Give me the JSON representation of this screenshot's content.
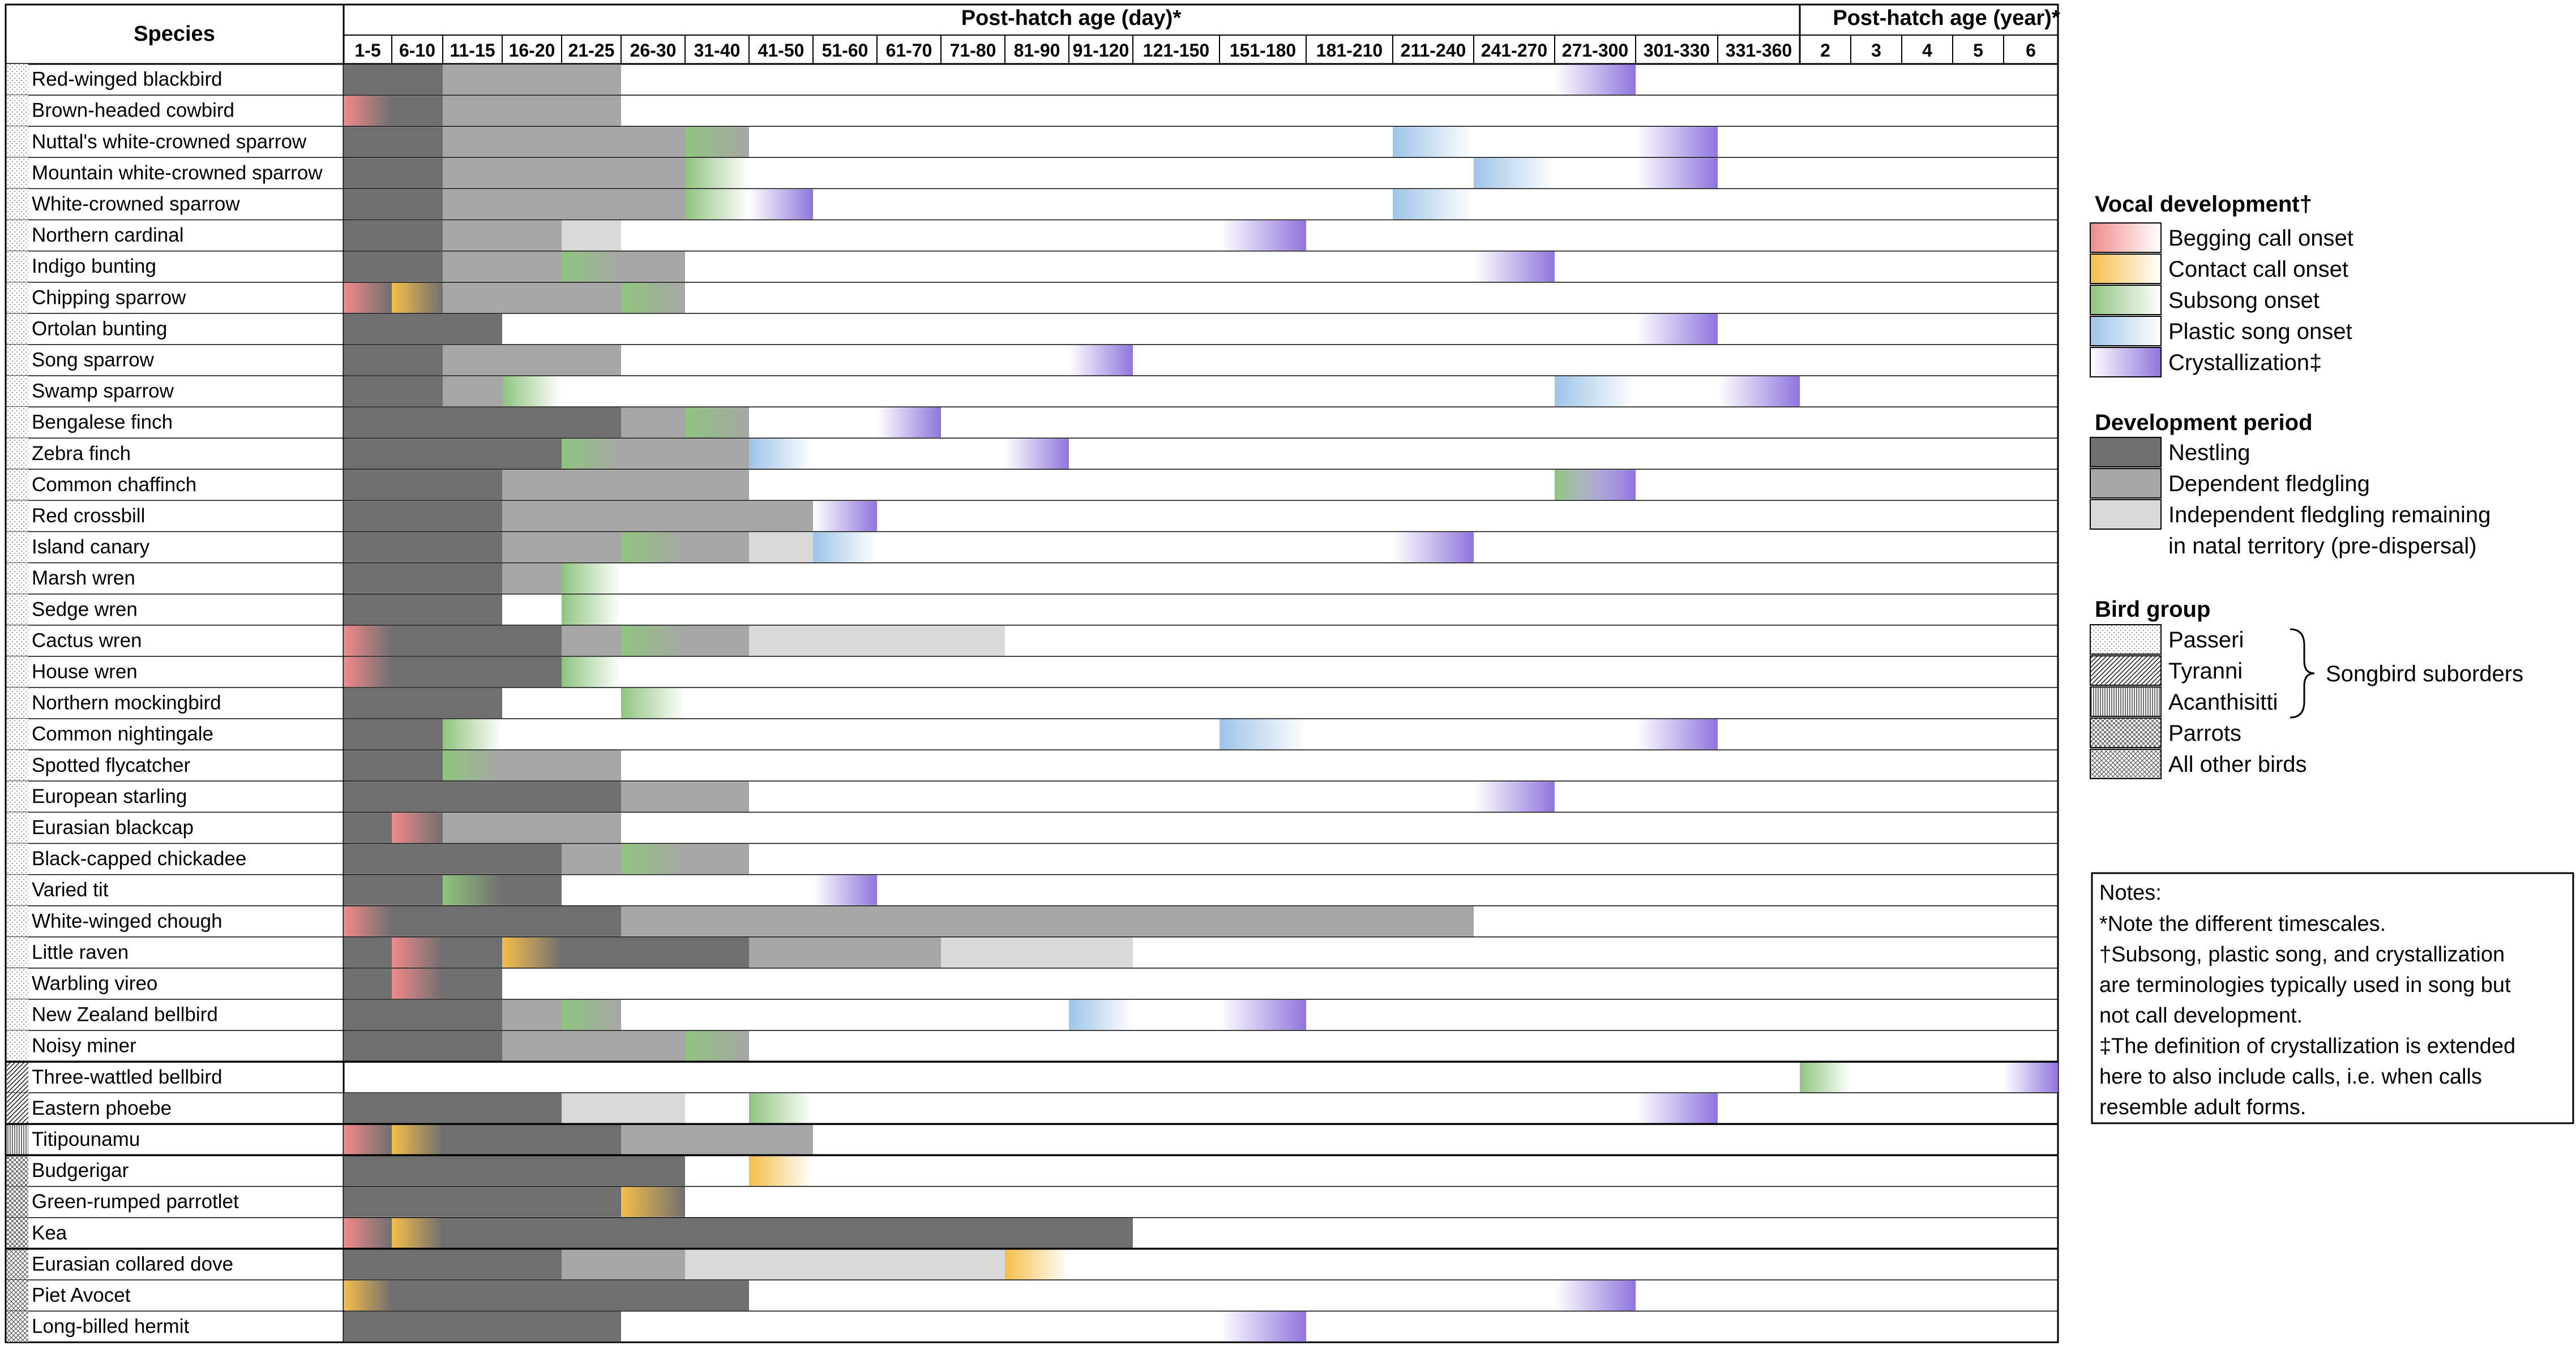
{
  "header": {
    "species": "Species",
    "day_group": "Post-hatch age (day)*",
    "year_group": "Post-hatch age (year)*"
  },
  "columns": [
    "1-5",
    "6-10",
    "11-15",
    "16-20",
    "21-25",
    "26-30",
    "31-40",
    "41-50",
    "51-60",
    "61-70",
    "71-80",
    "81-90",
    "91-120",
    "121-150",
    "151-180",
    "181-210",
    "211-240",
    "241-270",
    "271-300",
    "301-330",
    "331-360",
    "2",
    "3",
    "4",
    "5",
    "6"
  ],
  "colors": {
    "nestling": "#706f6f",
    "dependent": "#a6a6a6",
    "independent": "#d9d9d9",
    "begging": "#f08a8a",
    "contact": "#f5be4a",
    "subsong": "#8fc47e",
    "plastic": "#9ec4e8",
    "crystal": "#8f75dd"
  },
  "species": [
    {
      "name": "Red-winged blackbird",
      "group": "passeri",
      "segs": [
        [
          "n",
          0,
          2
        ],
        [
          "d",
          2,
          5
        ]
      ],
      "marks": [
        [
          "x",
          18
        ]
      ]
    },
    {
      "name": "Brown-headed cowbird",
      "group": "passeri",
      "segs": [
        [
          "n",
          0,
          2
        ],
        [
          "d",
          2,
          5
        ]
      ],
      "marks": [
        [
          "b",
          0
        ]
      ]
    },
    {
      "name": "Nuttal's white-crowned sparrow",
      "group": "passeri",
      "segs": [
        [
          "n",
          0,
          2
        ],
        [
          "d",
          2,
          7
        ]
      ],
      "marks": [
        [
          "s",
          6
        ],
        [
          "p",
          16
        ],
        [
          "x",
          19
        ]
      ]
    },
    {
      "name": "Mountain white-crowned sparrow",
      "group": "passeri",
      "segs": [
        [
          "n",
          0,
          2
        ],
        [
          "d",
          2,
          6
        ]
      ],
      "marks": [
        [
          "s",
          6
        ],
        [
          "p",
          17
        ],
        [
          "x",
          19
        ]
      ]
    },
    {
      "name": "White-crowned sparrow",
      "group": "passeri",
      "segs": [
        [
          "n",
          0,
          2
        ],
        [
          "d",
          2,
          6
        ]
      ],
      "marks": [
        [
          "s",
          6
        ],
        [
          "x",
          7
        ],
        [
          "p",
          16
        ]
      ]
    },
    {
      "name": "Northern cardinal",
      "group": "passeri",
      "segs": [
        [
          "n",
          0,
          2
        ],
        [
          "d",
          2,
          4
        ],
        [
          "i",
          4,
          5
        ]
      ],
      "marks": [
        [
          "x",
          14
        ]
      ]
    },
    {
      "name": "Indigo bunting",
      "group": "passeri",
      "segs": [
        [
          "n",
          0,
          2
        ],
        [
          "d",
          2,
          6
        ]
      ],
      "marks": [
        [
          "s",
          4
        ],
        [
          "x",
          17
        ]
      ]
    },
    {
      "name": "Chipping sparrow",
      "group": "passeri",
      "segs": [
        [
          "n",
          0,
          2
        ],
        [
          "d",
          2,
          6
        ]
      ],
      "marks": [
        [
          "b",
          0
        ],
        [
          "c",
          1
        ],
        [
          "s",
          5
        ]
      ]
    },
    {
      "name": "Ortolan bunting",
      "group": "passeri",
      "segs": [
        [
          "n",
          0,
          3
        ]
      ],
      "marks": [
        [
          "x",
          19
        ]
      ]
    },
    {
      "name": "Song sparrow",
      "group": "passeri",
      "segs": [
        [
          "n",
          0,
          2
        ],
        [
          "d",
          2,
          5
        ]
      ],
      "marks": [
        [
          "x",
          12
        ]
      ]
    },
    {
      "name": "Swamp sparrow",
      "group": "passeri",
      "segs": [
        [
          "n",
          0,
          2
        ],
        [
          "d",
          2,
          3
        ]
      ],
      "marks": [
        [
          "s",
          3
        ],
        [
          "p",
          18
        ],
        [
          "x",
          20
        ]
      ]
    },
    {
      "name": "Bengalese finch",
      "group": "passeri",
      "segs": [
        [
          "n",
          0,
          5
        ],
        [
          "d",
          5,
          7
        ]
      ],
      "marks": [
        [
          "s",
          6
        ],
        [
          "x",
          9
        ]
      ]
    },
    {
      "name": "Zebra finch",
      "group": "passeri",
      "segs": [
        [
          "n",
          0,
          4
        ],
        [
          "d",
          4,
          7
        ]
      ],
      "marks": [
        [
          "s",
          4
        ],
        [
          "p",
          7
        ],
        [
          "x",
          11
        ]
      ]
    },
    {
      "name": "Common chaffinch",
      "group": "passeri",
      "segs": [
        [
          "n",
          0,
          3
        ],
        [
          "d",
          3,
          7
        ]
      ],
      "marks": [
        [
          "s",
          18
        ],
        [
          "x",
          18
        ]
      ]
    },
    {
      "name": "Red crossbill",
      "group": "passeri",
      "segs": [
        [
          "n",
          0,
          3
        ],
        [
          "d",
          3,
          8
        ]
      ],
      "marks": [
        [
          "x",
          8
        ]
      ]
    },
    {
      "name": "Island canary",
      "group": "passeri",
      "segs": [
        [
          "n",
          0,
          3
        ],
        [
          "d",
          3,
          7
        ],
        [
          "i",
          7,
          8
        ]
      ],
      "marks": [
        [
          "s",
          5
        ],
        [
          "p",
          8
        ],
        [
          "x",
          16
        ]
      ]
    },
    {
      "name": "Marsh wren",
      "group": "passeri",
      "segs": [
        [
          "n",
          0,
          3
        ],
        [
          "d",
          3,
          4
        ]
      ],
      "marks": [
        [
          "s",
          4
        ]
      ]
    },
    {
      "name": "Sedge wren",
      "group": "passeri",
      "segs": [
        [
          "n",
          0,
          3
        ]
      ],
      "marks": [
        [
          "s",
          4
        ]
      ]
    },
    {
      "name": "Cactus wren",
      "group": "passeri",
      "segs": [
        [
          "n",
          0,
          4
        ],
        [
          "d",
          4,
          7
        ],
        [
          "i",
          7,
          11
        ]
      ],
      "marks": [
        [
          "b",
          0
        ],
        [
          "s",
          5
        ]
      ]
    },
    {
      "name": "House wren",
      "group": "passeri",
      "segs": [
        [
          "n",
          0,
          4
        ]
      ],
      "marks": [
        [
          "b",
          0
        ],
        [
          "s",
          4
        ]
      ]
    },
    {
      "name": "Northern mockingbird",
      "group": "passeri",
      "segs": [
        [
          "n",
          0,
          3
        ]
      ],
      "marks": [
        [
          "s",
          5
        ]
      ]
    },
    {
      "name": "Common nightingale",
      "group": "passeri",
      "segs": [
        [
          "n",
          0,
          2
        ]
      ],
      "marks": [
        [
          "s",
          2
        ],
        [
          "p",
          14
        ],
        [
          "x",
          19
        ]
      ]
    },
    {
      "name": "Spotted flycatcher",
      "group": "passeri",
      "segs": [
        [
          "n",
          0,
          2
        ],
        [
          "d",
          2,
          5
        ]
      ],
      "marks": [
        [
          "s",
          2
        ]
      ]
    },
    {
      "name": "European starling",
      "group": "passeri",
      "segs": [
        [
          "n",
          0,
          5
        ],
        [
          "d",
          5,
          7
        ]
      ],
      "marks": [
        [
          "x",
          17
        ]
      ]
    },
    {
      "name": "Eurasian blackcap",
      "group": "passeri",
      "segs": [
        [
          "n",
          0,
          2
        ],
        [
          "d",
          2,
          5
        ]
      ],
      "marks": [
        [
          "b",
          1
        ]
      ]
    },
    {
      "name": "Black-capped chickadee",
      "group": "passeri",
      "segs": [
        [
          "n",
          0,
          4
        ],
        [
          "d",
          4,
          7
        ]
      ],
      "marks": [
        [
          "s",
          5
        ]
      ]
    },
    {
      "name": "Varied tit",
      "group": "passeri",
      "segs": [
        [
          "n",
          0,
          4
        ]
      ],
      "marks": [
        [
          "s",
          2
        ],
        [
          "x",
          8
        ]
      ]
    },
    {
      "name": "White-winged chough",
      "group": "passeri",
      "segs": [
        [
          "n",
          0,
          5
        ],
        [
          "d",
          5,
          17
        ]
      ],
      "marks": [
        [
          "b",
          0
        ]
      ]
    },
    {
      "name": "Little raven",
      "group": "passeri",
      "segs": [
        [
          "n",
          0,
          7
        ],
        [
          "d",
          7,
          10
        ],
        [
          "i",
          10,
          13
        ]
      ],
      "marks": [
        [
          "b",
          1
        ],
        [
          "c",
          3
        ]
      ]
    },
    {
      "name": "Warbling vireo",
      "group": "passeri",
      "segs": [
        [
          "n",
          0,
          3
        ]
      ],
      "marks": [
        [
          "b",
          1
        ]
      ]
    },
    {
      "name": "New Zealand bellbird",
      "group": "passeri",
      "segs": [
        [
          "n",
          0,
          3
        ],
        [
          "d",
          3,
          5
        ]
      ],
      "marks": [
        [
          "s",
          4
        ],
        [
          "p",
          12
        ],
        [
          "x",
          14
        ]
      ]
    },
    {
      "name": "Noisy miner",
      "group": "passeri",
      "segs": [
        [
          "n",
          0,
          3
        ],
        [
          "d",
          3,
          7
        ]
      ],
      "marks": [
        [
          "s",
          6
        ]
      ]
    },
    {
      "name": "Three-wattled bellbird",
      "group": "tyranni",
      "segs": [],
      "marks": [
        [
          "s",
          21
        ],
        [
          "x",
          25
        ]
      ]
    },
    {
      "name": "Eastern phoebe",
      "group": "tyranni",
      "segs": [
        [
          "n",
          0,
          4
        ],
        [
          "i",
          4,
          6
        ]
      ],
      "marks": [
        [
          "s",
          7
        ],
        [
          "x",
          19
        ]
      ]
    },
    {
      "name": "Titipounamu",
      "group": "acanthisitti",
      "segs": [
        [
          "n",
          0,
          5
        ],
        [
          "d",
          5,
          8
        ]
      ],
      "marks": [
        [
          "b",
          0
        ],
        [
          "c",
          1
        ]
      ]
    },
    {
      "name": "Budgerigar",
      "group": "parrots",
      "segs": [
        [
          "n",
          0,
          6
        ]
      ],
      "marks": [
        [
          "c",
          7
        ]
      ]
    },
    {
      "name": "Green-rumped parrotlet",
      "group": "parrots",
      "segs": [
        [
          "n",
          0,
          6
        ]
      ],
      "marks": [
        [
          "c",
          5
        ]
      ]
    },
    {
      "name": "Kea",
      "group": "parrots",
      "segs": [
        [
          "n",
          0,
          13
        ]
      ],
      "marks": [
        [
          "b",
          0
        ],
        [
          "c",
          1
        ]
      ]
    },
    {
      "name": "Eurasian collared dove",
      "group": "other",
      "segs": [
        [
          "n",
          0,
          4
        ],
        [
          "d",
          4,
          6
        ],
        [
          "i",
          6,
          11
        ]
      ],
      "marks": [
        [
          "c",
          11
        ]
      ]
    },
    {
      "name": "Piet Avocet",
      "group": "other",
      "segs": [
        [
          "n",
          0,
          7
        ]
      ],
      "marks": [
        [
          "c",
          0
        ],
        [
          "x",
          18
        ]
      ]
    },
    {
      "name": "Long-billed hermit",
      "group": "other",
      "segs": [
        [
          "n",
          0,
          5
        ]
      ],
      "marks": [
        [
          "x",
          14
        ]
      ]
    }
  ],
  "legend": {
    "vocal_title": "Vocal development†",
    "vocal_items": [
      {
        "key": "begging",
        "label": "Begging call onset"
      },
      {
        "key": "contact",
        "label": "Contact call onset"
      },
      {
        "key": "subsong",
        "label": "Subsong onset"
      },
      {
        "key": "plastic",
        "label": "Plastic song onset"
      },
      {
        "key": "crystal",
        "label": "Crystallization‡"
      }
    ],
    "period_title": "Development period",
    "period_items": [
      {
        "key": "nestling",
        "label": "Nestling"
      },
      {
        "key": "dependent",
        "label": "Dependent fledgling"
      },
      {
        "key": "independent",
        "label": "Independent fledgling remaining",
        "label2": "in natal territory (pre-dispersal)"
      }
    ],
    "group_title": "Bird group",
    "group_items": [
      {
        "key": "passeri",
        "label": "Passeri"
      },
      {
        "key": "tyranni",
        "label": "Tyranni"
      },
      {
        "key": "acanthisitti",
        "label": "Acanthisitti"
      },
      {
        "key": "parrots",
        "label": "Parrots"
      },
      {
        "key": "other",
        "label": "All other birds"
      }
    ],
    "suborder_label": "Songbird suborders"
  },
  "notes": {
    "title": "Notes:",
    "lines": [
      "*Note the different timescales.",
      "†Subsong, plastic song, and crystallization",
      "are terminologies typically used in song but",
      "not call development.",
      "‡The definition of crystallization is extended",
      "here to also include calls, i.e. when calls",
      "resemble adult forms."
    ]
  }
}
